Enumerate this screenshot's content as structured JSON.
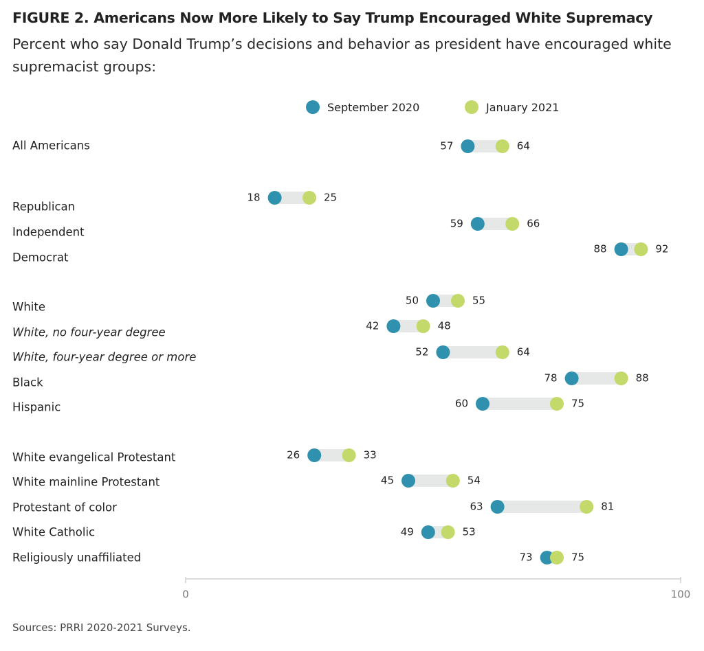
{
  "title": "FIGURE 2.  Americans Now More Likely to Say Trump Encouraged White Supremacy",
  "subtitle": "Percent who say Donald Trump’s decisions and behavior as president have encouraged white supremacist groups:",
  "source": "Sources: PRRI 2020-2021 Surveys.",
  "colors": {
    "sept": "#2f91ae",
    "jan": "#c3d96a",
    "range": "#e6e8e8",
    "axis": "#cfcfcf"
  },
  "legend": [
    {
      "label": "September 2020",
      "color": "#2f91ae"
    },
    {
      "label": "January 2021",
      "color": "#c3d96a"
    }
  ],
  "chart_data": {
    "type": "dumbbell",
    "xlim": [
      0,
      100
    ],
    "xticks": [
      "0",
      "100"
    ],
    "series": [
      {
        "name": "September 2020",
        "key": "sept"
      },
      {
        "name": "January 2021",
        "key": "jan"
      }
    ],
    "rows": [
      {
        "label": "All Americans",
        "italic": false,
        "sept": 57,
        "jan": 64
      },
      {
        "label": "Republican",
        "italic": false,
        "sept": 18,
        "jan": 25
      },
      {
        "label": "Independent",
        "italic": false,
        "sept": 59,
        "jan": 66
      },
      {
        "label": "Democrat",
        "italic": false,
        "sept": 88,
        "jan": 92
      },
      {
        "label": "White",
        "italic": false,
        "sept": 50,
        "jan": 55
      },
      {
        "label": "White, no four-year degree",
        "italic": true,
        "sept": 42,
        "jan": 48
      },
      {
        "label": "White, four-year degree or more",
        "italic": true,
        "sept": 52,
        "jan": 64
      },
      {
        "label": "Black",
        "italic": false,
        "sept": 78,
        "jan": 88
      },
      {
        "label": "Hispanic",
        "italic": false,
        "sept": 60,
        "jan": 75
      },
      {
        "label": "White evangelical Protestant",
        "italic": false,
        "sept": 26,
        "jan": 33
      },
      {
        "label": "White mainline Protestant",
        "italic": false,
        "sept": 45,
        "jan": 54
      },
      {
        "label": "Protestant of color",
        "italic": false,
        "sept": 63,
        "jan": 81
      },
      {
        "label": "White Catholic",
        "italic": false,
        "sept": 49,
        "jan": 53
      },
      {
        "label": "Religiously unaffiliated",
        "italic": false,
        "sept": 73,
        "jan": 75
      }
    ]
  }
}
